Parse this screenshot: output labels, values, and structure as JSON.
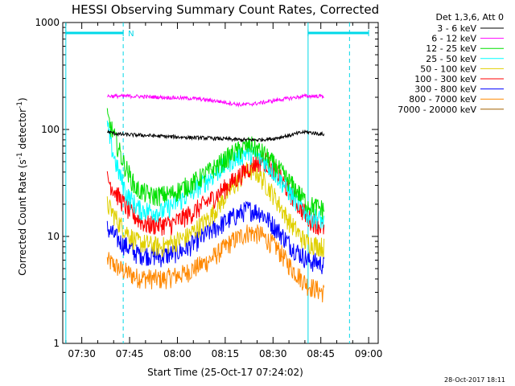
{
  "chart_data": {
    "type": "line",
    "title": "HESSI Observing Summary Count Rates, Corrected",
    "xlabel": "Start Time (25-Oct-17 07:24:02)",
    "ylabel_main": "Corrected Count Rate (s",
    "ylabel_sup1": "-1",
    "ylabel_mid": " detector",
    "ylabel_sup2": "-1",
    "ylabel_end": ")",
    "y_scale": "log",
    "ylim": [
      1,
      1000
    ],
    "xlim": [
      "07:24:02",
      "09:03:00"
    ],
    "x_ticks": [
      "07:30",
      "07:45",
      "08:00",
      "08:15",
      "08:30",
      "08:45",
      "09:00"
    ],
    "y_ticks": [
      "1",
      "10",
      "100",
      "1000"
    ],
    "legend_title": "Det 1,3,6, Att 0",
    "legend_position": "outside-right",
    "timestamp": "28-Oct-2017 18:11",
    "night_marker": "N",
    "series": [
      {
        "name": "3 - 6 keV",
        "color": "#000000",
        "start": "07:38",
        "end": "08:46",
        "points": [
          [
            "07:38",
            95
          ],
          [
            "07:42",
            90
          ],
          [
            "07:50",
            88
          ],
          [
            "08:00",
            85
          ],
          [
            "08:10",
            83
          ],
          [
            "08:20",
            80
          ],
          [
            "08:25",
            80
          ],
          [
            "08:30",
            82
          ],
          [
            "08:35",
            88
          ],
          [
            "08:40",
            95
          ],
          [
            "08:46",
            90
          ]
        ]
      },
      {
        "name": "6 - 12 keV",
        "color": "#ff00ff",
        "start": "07:38",
        "end": "08:46",
        "points": [
          [
            "07:38",
            205
          ],
          [
            "07:45",
            205
          ],
          [
            "07:55",
            200
          ],
          [
            "08:05",
            195
          ],
          [
            "08:12",
            185
          ],
          [
            "08:20",
            170
          ],
          [
            "08:25",
            175
          ],
          [
            "08:32",
            190
          ],
          [
            "08:40",
            205
          ],
          [
            "08:46",
            205
          ]
        ]
      },
      {
        "name": "12 - 25 keV",
        "color": "#00e000",
        "start": "07:38",
        "end": "08:46",
        "points": [
          [
            "07:38",
            130
          ],
          [
            "07:40",
            90
          ],
          [
            "07:43",
            50
          ],
          [
            "07:47",
            28
          ],
          [
            "07:52",
            24
          ],
          [
            "07:58",
            25
          ],
          [
            "08:05",
            32
          ],
          [
            "08:12",
            45
          ],
          [
            "08:18",
            62
          ],
          [
            "08:23",
            72
          ],
          [
            "08:27",
            60
          ],
          [
            "08:32",
            42
          ],
          [
            "08:37",
            28
          ],
          [
            "08:41",
            20
          ],
          [
            "08:46",
            18
          ]
        ]
      },
      {
        "name": "25 - 50 keV",
        "color": "#00ffff",
        "start": "07:38",
        "end": "08:46",
        "points": [
          [
            "07:38",
            110
          ],
          [
            "07:39",
            75
          ],
          [
            "07:41",
            45
          ],
          [
            "07:44",
            25
          ],
          [
            "07:48",
            18
          ],
          [
            "07:55",
            17
          ],
          [
            "08:02",
            23
          ],
          [
            "08:10",
            35
          ],
          [
            "08:17",
            52
          ],
          [
            "08:22",
            62
          ],
          [
            "08:27",
            52
          ],
          [
            "08:32",
            35
          ],
          [
            "08:37",
            22
          ],
          [
            "08:41",
            16
          ],
          [
            "08:46",
            14
          ]
        ]
      },
      {
        "name": "50 - 100 keV",
        "color": "#e0d000",
        "start": "07:38",
        "end": "08:46",
        "points": [
          [
            "07:38",
            20
          ],
          [
            "07:42",
            13
          ],
          [
            "07:47",
            9
          ],
          [
            "07:55",
            8
          ],
          [
            "08:03",
            10
          ],
          [
            "08:10",
            15
          ],
          [
            "08:17",
            28
          ],
          [
            "08:22",
            42
          ],
          [
            "08:25",
            40
          ],
          [
            "08:30",
            25
          ],
          [
            "08:35",
            14
          ],
          [
            "08:40",
            9
          ],
          [
            "08:46",
            8
          ]
        ]
      },
      {
        "name": "100 - 300 keV",
        "color": "#ff0000",
        "start": "07:38",
        "end": "08:46",
        "points": [
          [
            "07:38",
            35
          ],
          [
            "07:41",
            25
          ],
          [
            "07:45",
            17
          ],
          [
            "07:50",
            13
          ],
          [
            "07:58",
            13
          ],
          [
            "08:05",
            17
          ],
          [
            "08:12",
            24
          ],
          [
            "08:18",
            34
          ],
          [
            "08:24",
            48
          ],
          [
            "08:27",
            52
          ],
          [
            "08:31",
            40
          ],
          [
            "08:36",
            24
          ],
          [
            "08:41",
            15
          ],
          [
            "08:46",
            12
          ]
        ]
      },
      {
        "name": "300 - 800 keV",
        "color": "#0000ff",
        "start": "07:38",
        "end": "08:46",
        "points": [
          [
            "07:38",
            12
          ],
          [
            "07:42",
            9
          ],
          [
            "07:47",
            7
          ],
          [
            "07:55",
            6.5
          ],
          [
            "08:02",
            7.5
          ],
          [
            "08:10",
            11
          ],
          [
            "08:17",
            15
          ],
          [
            "08:22",
            18
          ],
          [
            "08:26",
            17
          ],
          [
            "08:31",
            12
          ],
          [
            "08:36",
            8
          ],
          [
            "08:41",
            6
          ],
          [
            "08:46",
            5.5
          ]
        ]
      },
      {
        "name": "800 - 7000 keV",
        "color": "#ff8800",
        "start": "07:38",
        "end": "08:46",
        "points": [
          [
            "07:38",
            6
          ],
          [
            "07:42",
            5
          ],
          [
            "07:47",
            4.2
          ],
          [
            "07:55",
            4
          ],
          [
            "08:02",
            4.5
          ],
          [
            "08:10",
            6
          ],
          [
            "08:17",
            9
          ],
          [
            "08:22",
            11
          ],
          [
            "08:26",
            10.5
          ],
          [
            "08:31",
            8
          ],
          [
            "08:36",
            5
          ],
          [
            "08:41",
            3.5
          ],
          [
            "08:46",
            3
          ]
        ]
      },
      {
        "name": "7000 - 20000 keV",
        "color": "#a06000",
        "start": "07:38",
        "end": "08:46",
        "points": []
      }
    ],
    "marker_lines": {
      "solid_cyan_times": [
        "07:25",
        "08:41"
      ],
      "dashed_cyan_times": [
        "07:43",
        "08:54"
      ],
      "night_bars": [
        [
          "07:25",
          "07:43"
        ],
        [
          "08:41",
          "09:00"
        ]
      ]
    }
  }
}
